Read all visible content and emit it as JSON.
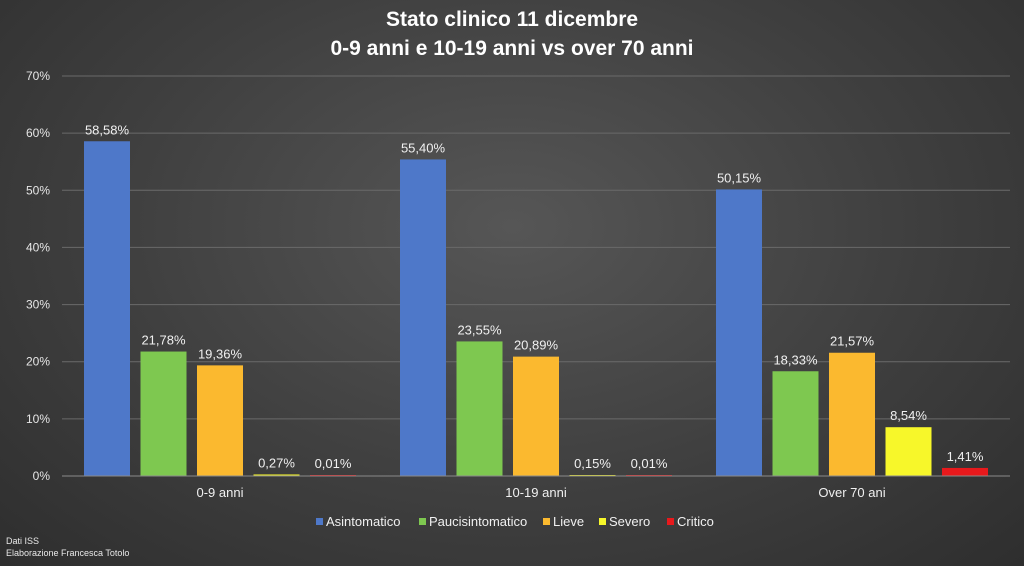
{
  "title": "Stato clinico 11 dicembre",
  "subtitle": "0-9 anni e 10-19 anni vs over 70 anni",
  "credits": {
    "line1": "Dati ISS",
    "line2": "Elaborazione Francesca Totolo"
  },
  "chart_data": {
    "type": "bar",
    "title": "Stato clinico 11 dicembre",
    "subtitle": "0-9 anni e 10-19 anni vs over 70 anni",
    "xlabel": "",
    "ylabel": "",
    "ylim": [
      0,
      70
    ],
    "yticks": [
      0,
      10,
      20,
      30,
      40,
      50,
      60,
      70
    ],
    "ytick_labels": [
      "0%",
      "10%",
      "20%",
      "30%",
      "40%",
      "50%",
      "60%",
      "70%"
    ],
    "grid": true,
    "legend_position": "bottom",
    "categories": [
      "0-9 anni",
      "10-19 anni",
      "Over 70 ani"
    ],
    "series": [
      {
        "name": "Asintomatico",
        "color": "#4e78c9",
        "values": [
          58.58,
          55.4,
          50.15
        ],
        "labels": [
          "58,58%",
          "55,40%",
          "50,15%"
        ]
      },
      {
        "name": "Paucisintomatico",
        "color": "#7ec850",
        "values": [
          21.78,
          23.55,
          18.33
        ],
        "labels": [
          "21,78%",
          "23,55%",
          "18,33%"
        ]
      },
      {
        "name": "Lieve",
        "color": "#fbb92f",
        "values": [
          19.36,
          20.89,
          21.57
        ],
        "labels": [
          "19,36%",
          "20,89%",
          "21,57%"
        ]
      },
      {
        "name": "Severo",
        "color": "#f7f72a",
        "values": [
          0.27,
          0.15,
          8.54
        ],
        "labels": [
          "0,27%",
          "0,15%",
          "8,54%"
        ]
      },
      {
        "name": "Critico",
        "color": "#e8191c",
        "values": [
          0.01,
          0.01,
          1.41
        ],
        "labels": [
          "0,01%",
          "0,01%",
          "1,41%"
        ]
      }
    ]
  }
}
